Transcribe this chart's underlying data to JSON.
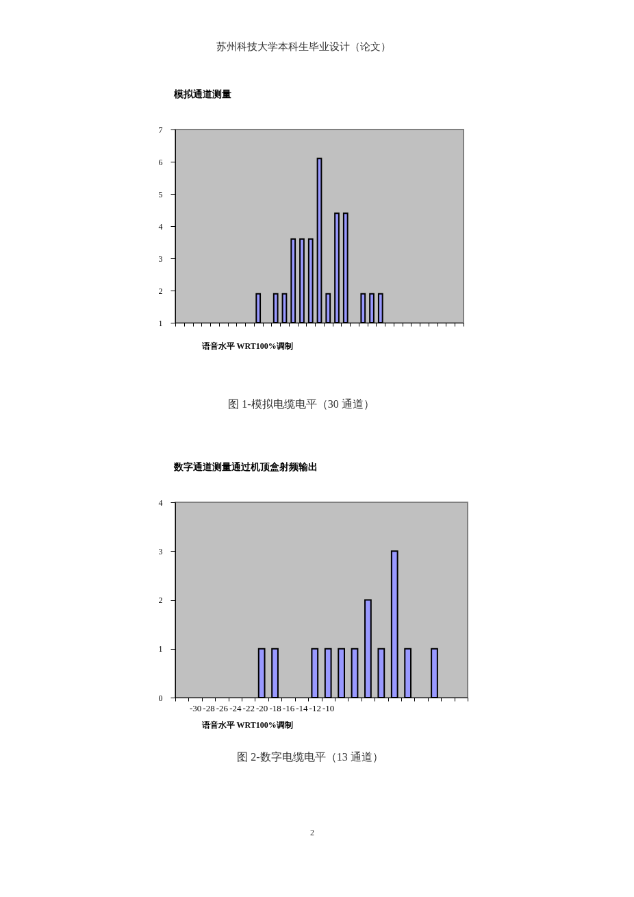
{
  "chart_data": [
    {
      "type": "bar",
      "title": "模拟通道测量",
      "xlabel": "语音水平 WRT100%调制",
      "categories": [
        null,
        null,
        null,
        null,
        null,
        null,
        null,
        null,
        null,
        null,
        null,
        null,
        null,
        null,
        null,
        null,
        null,
        null,
        null,
        null,
        null,
        null,
        null,
        null,
        null,
        null,
        null,
        null,
        null,
        null,
        null,
        null,
        null
      ],
      "values": [
        null,
        null,
        null,
        null,
        null,
        null,
        null,
        null,
        null,
        1.9,
        null,
        1.9,
        1.9,
        3.6,
        3.6,
        3.6,
        6.1,
        1.9,
        4.4,
        4.4,
        null,
        1.9,
        1.9,
        1.9,
        null,
        null,
        null,
        null,
        null,
        null,
        null,
        null,
        null
      ],
      "color": "#9999ff",
      "ylim": [
        1,
        7
      ],
      "yticks": [
        1,
        2,
        3,
        4,
        5,
        6,
        7
      ],
      "grid": false,
      "annotations": [
        "苏州科技大学本科生毕业设计（论文）",
        "图 1-模拟电缆电平（30 通道）"
      ]
    },
    {
      "type": "bar",
      "title": "数字通道测量通过机顶盒射频输出",
      "xlabel": "语音水平 WRT100%调制",
      "categories": [
        null,
        "-30",
        "-28",
        "-26",
        "-24",
        "-22",
        "-20",
        "-18",
        "-16",
        "-14",
        "-12",
        "-10",
        null,
        null,
        null,
        null,
        null,
        null,
        null,
        null,
        null,
        null
      ],
      "values": [
        null,
        null,
        null,
        null,
        null,
        null,
        1,
        1,
        null,
        null,
        1,
        1,
        1,
        1,
        2,
        1,
        3,
        1,
        null,
        1,
        null,
        null
      ],
      "color": "#9999ff",
      "ylim": [
        0,
        4
      ],
      "yticks": [
        0,
        1,
        2,
        3,
        4
      ],
      "grid": false,
      "annotations": [
        "图 2-数字电缆电平（13 通道）",
        "2"
      ]
    }
  ]
}
